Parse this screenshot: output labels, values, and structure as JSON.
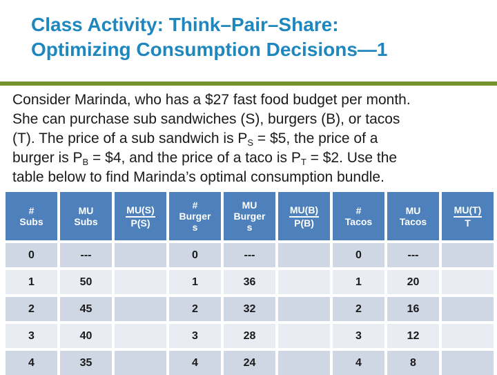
{
  "slide": {
    "title_line1": "Class Activity: Think–Pair–Share:",
    "title_line2": "Optimizing Consumption Decisions—1"
  },
  "paragraph": {
    "lines": [
      {
        "pre": "Consider Marinda, who has a $27 fast food budget per month."
      },
      {
        "pre": "She can purchase sub sandwiches (S), burgers (B), or tacos"
      },
      {
        "pre": "(T). The price of a sub sandwich is P",
        "sub1": "S",
        "mid": " = $5, the price of a"
      },
      {
        "pre": "burger is P",
        "sub1": "B",
        "mid": " = $4, and the price of a taco is P",
        "sub2": "T",
        "post": " = $2. Use the"
      },
      {
        "pre": "table below to find Marinda’s optimal consumption bundle."
      }
    ]
  },
  "table": {
    "headers": [
      {
        "top": "#",
        "bottom": "Subs",
        "fraction": false
      },
      {
        "top": "MU",
        "bottom": "Subs",
        "fraction": false
      },
      {
        "top": "MU(S)",
        "bottom": "P(S)",
        "fraction": true
      },
      {
        "top": "#",
        "bottom": "Burgers",
        "fraction": false
      },
      {
        "top": "MU",
        "bottom": "Burgers",
        "fraction": false
      },
      {
        "top": "MU(B)",
        "bottom": "P(B)",
        "fraction": true
      },
      {
        "top": "#",
        "bottom": "Tacos",
        "fraction": false
      },
      {
        "top": "MU",
        "bottom": "Tacos",
        "fraction": false
      },
      {
        "top": "MU(T)",
        "bottom": "T",
        "fraction": true
      }
    ],
    "rows": [
      [
        "0",
        "---",
        "",
        "0",
        "---",
        "",
        "0",
        "---",
        ""
      ],
      [
        "1",
        "50",
        "",
        "1",
        "36",
        "",
        "1",
        "20",
        ""
      ],
      [
        "2",
        "45",
        "",
        "2",
        "32",
        "",
        "2",
        "16",
        ""
      ],
      [
        "3",
        "40",
        "",
        "3",
        "28",
        "",
        "3",
        "12",
        ""
      ],
      [
        "4",
        "35",
        "",
        "4",
        "24",
        "",
        "4",
        "8",
        ""
      ]
    ]
  },
  "colors": {
    "title_blue": "#1e87be",
    "divider_green": "#73932c",
    "header_blue": "#4e81bb",
    "band_dark": "#cfd6e4",
    "band_light": "#e9ecf3",
    "body_text": "#1a1a1a"
  }
}
